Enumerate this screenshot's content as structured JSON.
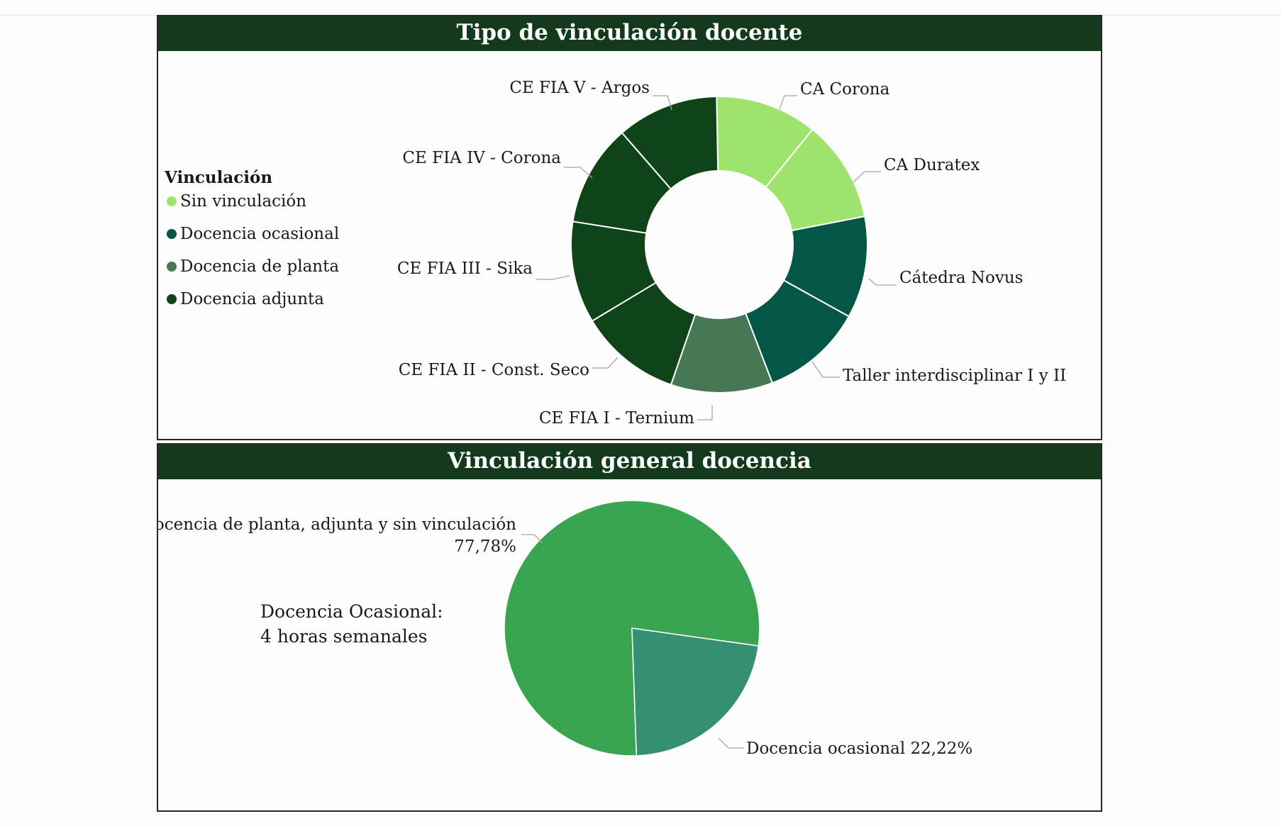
{
  "chart_data": [
    {
      "type": "pie",
      "variant": "donut",
      "title": "Tipo de vinculación docente",
      "legend": {
        "title": "Vinculación",
        "placement": "left",
        "entries": [
          {
            "label": "Sin vinculación",
            "color": "#9de36e"
          },
          {
            "label": "Docencia ocasional",
            "color": "#045745"
          },
          {
            "label": "Docencia de planta",
            "color": "#467856"
          },
          {
            "label": "Docencia adjunta",
            "color": "#0e4418"
          }
        ]
      },
      "slices": [
        {
          "label": "CA Corona",
          "value": 1,
          "category": "Sin vinculación"
        },
        {
          "label": "CA Duratex",
          "value": 1,
          "category": "Sin vinculación"
        },
        {
          "label": "Cátedra Novus",
          "value": 1,
          "category": "Docencia ocasional"
        },
        {
          "label": "Taller interdisciplinar I y II",
          "value": 1,
          "category": "Docencia ocasional"
        },
        {
          "label": "CE FIA I - Ternium",
          "value": 1,
          "category": "Docencia de planta"
        },
        {
          "label": "CE FIA II - Const. Seco",
          "value": 1,
          "category": "Docencia adjunta"
        },
        {
          "label": "CE FIA III - Sika",
          "value": 1,
          "category": "Docencia adjunta"
        },
        {
          "label": "CE FIA IV - Corona",
          "value": 1,
          "category": "Docencia adjunta"
        },
        {
          "label": "CE FIA V - Argos",
          "value": 1,
          "category": "Docencia adjunta"
        }
      ]
    },
    {
      "type": "pie",
      "title": "Vinculación general docencia",
      "slices": [
        {
          "label": "Docencia de planta, adjunta y sin vinculación",
          "value_label": "77,78%",
          "value": 77.78,
          "color": "#39a551"
        },
        {
          "label": "Docencia ocasional",
          "value_label": "22,22%",
          "value": 22.22,
          "color": "#368f72"
        }
      ],
      "annotation": [
        "Docencia Ocasional:",
        "4 horas semanales"
      ]
    }
  ]
}
